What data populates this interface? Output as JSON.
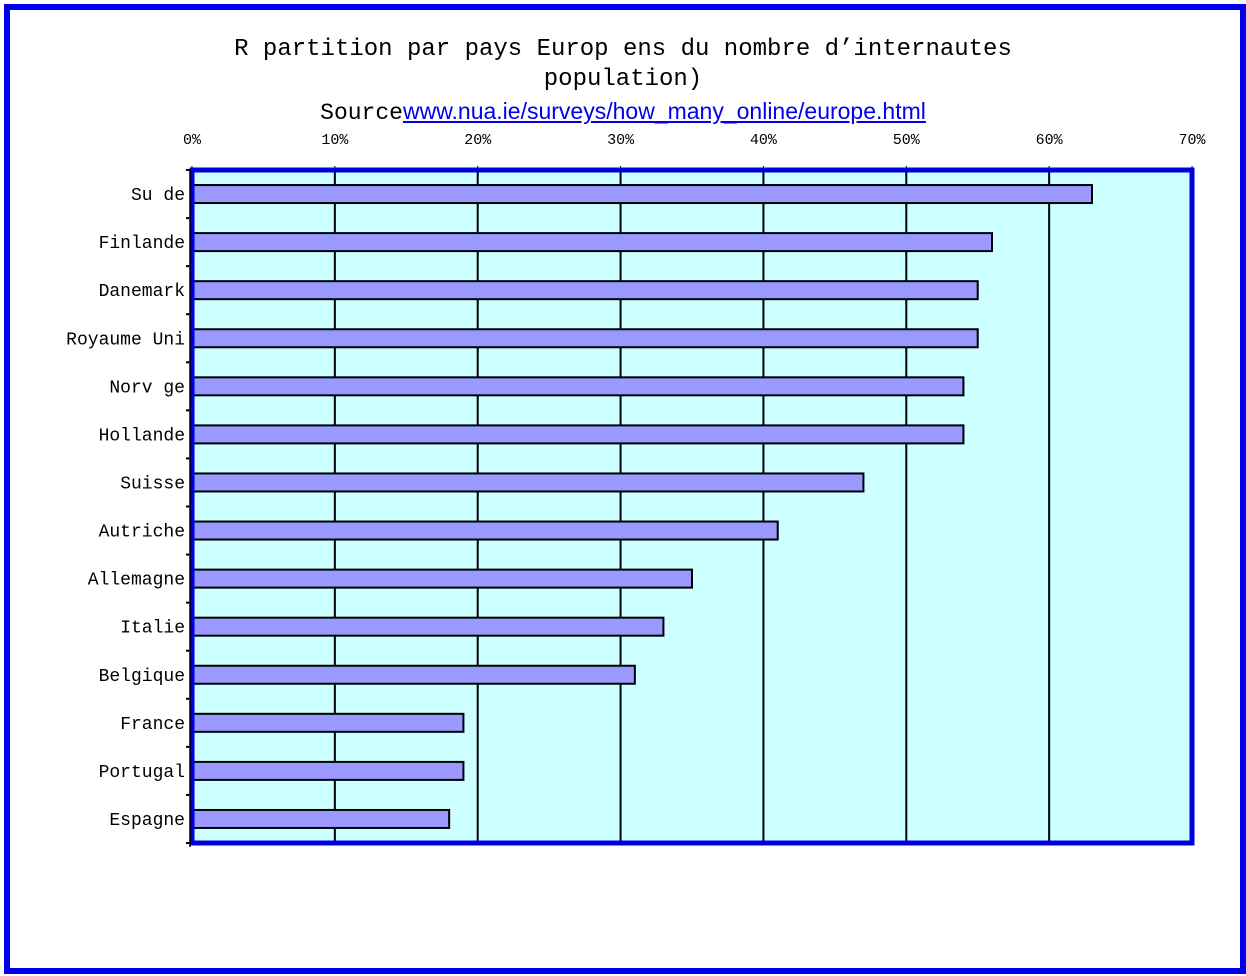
{
  "colors": {
    "frame_border": "#0000ee",
    "plot_border": "#0000dd",
    "plot_background": "#ccffff",
    "bar_fill": "#9999ff",
    "bar_stroke": "#000000",
    "gridline": "#000000",
    "link": "#0000ee"
  },
  "header": {
    "title_line1": "R partition par pays Europ ens du nombre d’internautes",
    "title_line2": "population)",
    "source_label": "Source",
    "source_link": "www.nua.ie/surveys/how_many_online/europe.html"
  },
  "chart_data": {
    "type": "bar",
    "orientation": "horizontal",
    "title": "R partition par pays Europ ens du nombre d’internautes population)",
    "subtitle": "Sourcewww.nua.ie/surveys/how_many_online/europe.html",
    "xlabel": "",
    "ylabel": "",
    "xlim": [
      0,
      70
    ],
    "x_ticks": [
      0,
      10,
      20,
      30,
      40,
      50,
      60,
      70
    ],
    "x_tick_labels": [
      "0%",
      "10%",
      "20%",
      "30%",
      "40%",
      "50%",
      "60%",
      "70%"
    ],
    "x_axis_position": "top",
    "grid": true,
    "legend": "none",
    "categories": [
      "Su de",
      "Finlande",
      "Danemark",
      "Royaume Uni",
      "Norv ge",
      "Hollande",
      "Suisse",
      "Autriche",
      "Allemagne",
      "Italie",
      "Belgique",
      "France",
      "Portugal",
      "Espagne"
    ],
    "values": [
      63,
      56,
      55,
      55,
      54,
      54,
      47,
      41,
      35,
      33,
      31,
      19,
      19,
      18
    ]
  }
}
